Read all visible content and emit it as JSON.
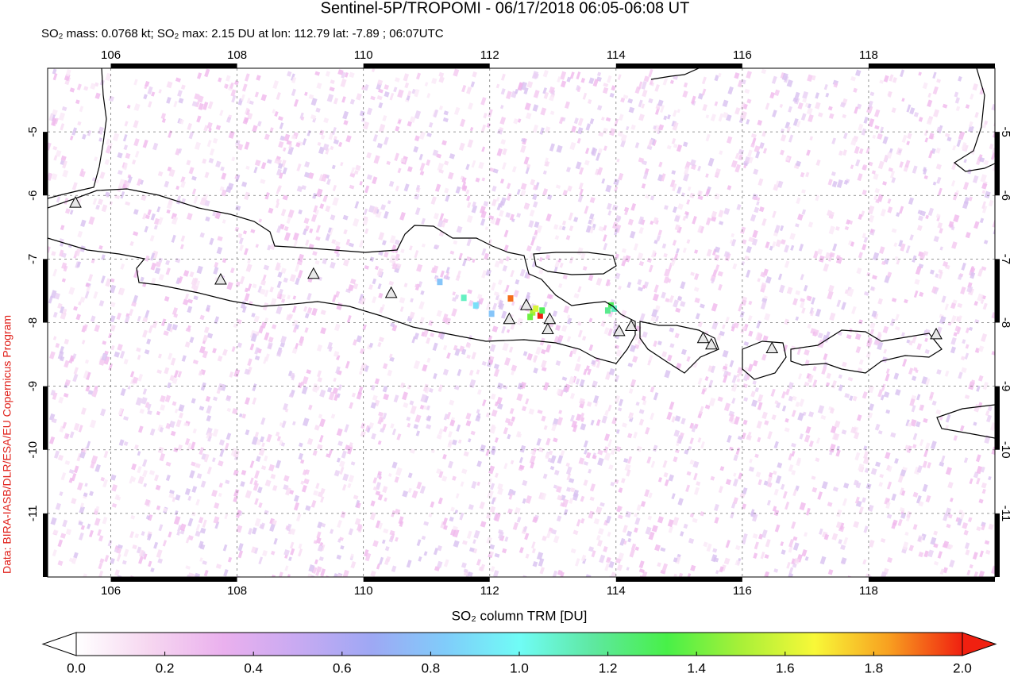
{
  "title": "Sentinel-5P/TROPOMI - 06/17/2018 06:05-06:08 UT",
  "subtitle": "SO₂ mass: 0.0768 kt; SO₂ max: 2.15 DU at lon: 112.79 lat: -7.89 ; 06:07UTC",
  "credit": "Data: BIRA-IASB/DLR/ESA/EU Copernicus Program",
  "map": {
    "xlim": [
      105,
      120
    ],
    "ylim": [
      -12,
      -4
    ],
    "xticks": [
      106,
      108,
      110,
      112,
      114,
      116,
      118
    ],
    "yticks": [
      -5,
      -6,
      -7,
      -8,
      -9,
      -10,
      -11
    ],
    "grid": true,
    "volcanoes": {
      "lon": [
        105.44,
        107.74,
        109.21,
        110.44,
        112.31,
        112.58,
        112.95,
        112.92,
        114.05,
        114.24,
        115.38,
        115.51,
        116.47,
        119.07
      ],
      "lat": [
        -6.11,
        -7.32,
        -7.23,
        -7.53,
        -7.94,
        -7.72,
        -7.94,
        -8.1,
        -8.13,
        -8.05,
        -8.24,
        -8.34,
        -8.4,
        -8.18
      ]
    },
    "plume": {
      "lon": [
        112.8,
        112.33,
        112.68,
        112.73,
        112.64,
        112.83,
        113.92,
        113.87,
        113.97,
        111.21,
        111.59,
        112.03,
        111.78
      ],
      "lat": [
        -7.89,
        -7.62,
        -7.84,
        -7.78,
        -7.91,
        -7.81,
        -7.73,
        -7.81,
        -7.78,
        -7.36,
        -7.61,
        -7.86,
        -7.73
      ],
      "values": [
        2.15,
        1.9,
        1.5,
        1.6,
        1.4,
        1.3,
        1.3,
        1.2,
        1.1,
        0.8,
        1.1,
        0.8,
        0.9
      ]
    }
  },
  "colorbar": {
    "label": "SO₂ column TRM [DU]",
    "lim": [
      0,
      2
    ],
    "ticks": [
      {
        "value": 0,
        "label": "0.0"
      },
      0.2,
      0.4,
      0.6,
      0.8,
      {
        "value": 1,
        "label": "1.0"
      },
      1.2,
      1.4,
      1.6,
      1.8,
      {
        "value": 2,
        "label": "2.0"
      }
    ],
    "colors": [
      "#ffffff",
      "#f6d6f0",
      "#eab0ee",
      "#c8aaf2",
      "#9ea8f4",
      "#80ccfa",
      "#70fcf6",
      "#5ee8a0",
      "#48f048",
      "#a8f038",
      "#f8f838",
      "#f8a020",
      "#f02010"
    ]
  }
}
